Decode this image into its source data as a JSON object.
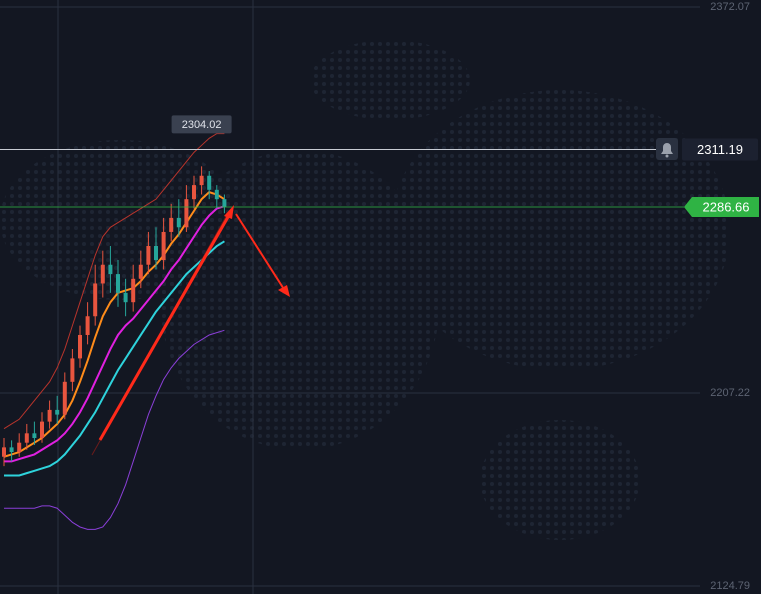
{
  "chart_data": {
    "type": "candlestick",
    "ylim": [
      2121.38,
      2375.06
    ],
    "yticks": [
      2372.07,
      2207.22,
      2124.79
    ],
    "categories": [
      null,
      null,
      null,
      null,
      null,
      null,
      null,
      null,
      null,
      null,
      null,
      null,
      null,
      null,
      null,
      null,
      null,
      null,
      null,
      null,
      null,
      null,
      null,
      null,
      null,
      null,
      null,
      null,
      null,
      null
    ],
    "open": [
      2180,
      2184,
      2182,
      2186,
      2190,
      2188,
      2195,
      2200,
      2198,
      2212,
      2222,
      2232,
      2240,
      2254,
      2262,
      2258,
      2250,
      2246,
      2256,
      2262,
      2270,
      2264,
      2276,
      2282,
      2278,
      2290,
      2296,
      2300,
      2294,
      2290
    ],
    "close": [
      2184,
      2182,
      2186,
      2190,
      2188,
      2195,
      2200,
      2198,
      2212,
      2222,
      2232,
      2240,
      2254,
      2262,
      2258,
      2250,
      2246,
      2256,
      2262,
      2270,
      2264,
      2276,
      2282,
      2278,
      2290,
      2296,
      2300,
      2294,
      2290,
      2286.66
    ],
    "high": [
      2188,
      2187,
      2190,
      2194,
      2195,
      2199,
      2204,
      2206,
      2216,
      2226,
      2236,
      2246,
      2262,
      2268,
      2270,
      2264,
      2256,
      2262,
      2268,
      2276,
      2278,
      2282,
      2288,
      2290,
      2296,
      2300,
      2304.02,
      2302,
      2296,
      2292
    ],
    "low": [
      2176,
      2178,
      2180,
      2183,
      2185,
      2186,
      2192,
      2194,
      2196,
      2208,
      2218,
      2228,
      2236,
      2248,
      2250,
      2244,
      2240,
      2242,
      2252,
      2258,
      2260,
      2260,
      2272,
      2274,
      2276,
      2286,
      2292,
      2290,
      2286,
      2284
    ],
    "up_color": "#e8553f",
    "down_color": "#26a69a",
    "series": [
      {
        "color": "#b8342c",
        "values": [
          2192,
          2194,
          2196,
          2200,
          2204,
          2208,
          2212,
          2218,
          2226,
          2236,
          2246,
          2256,
          2266,
          2274,
          2278,
          2280,
          2282,
          2284,
          2286,
          2288,
          2290,
          2294,
          2298,
          2302,
          2306,
          2310,
          2313,
          2316,
          2318,
          2318
        ]
      },
      {
        "color": "#ff8c1a",
        "values": [
          2180,
          2181,
          2182,
          2184,
          2186,
          2188,
          2191,
          2194,
          2198,
          2204,
          2212,
          2221,
          2231,
          2240,
          2246,
          2250,
          2251,
          2252,
          2255,
          2259,
          2262,
          2266,
          2271,
          2275,
          2280,
          2285,
          2290,
          2293,
          2292,
          2290
        ]
      },
      {
        "color": "#e020e0",
        "values": [
          2178,
          2178,
          2179,
          2180,
          2181,
          2183,
          2185,
          2187,
          2190,
          2194,
          2199,
          2205,
          2212,
          2219,
          2226,
          2232,
          2236,
          2239,
          2243,
          2247,
          2251,
          2255,
          2260,
          2264,
          2269,
          2274,
          2279,
          2283,
          2286,
          2287
        ]
      },
      {
        "color": "#2ed3dc",
        "values": [
          2172,
          2172,
          2172,
          2173,
          2174,
          2175,
          2176,
          2178,
          2181,
          2185,
          2189,
          2194,
          2199,
          2205,
          2211,
          2217,
          2222,
          2227,
          2232,
          2237,
          2242,
          2246,
          2250,
          2254,
          2258,
          2261,
          2264,
          2267,
          2270,
          2272
        ]
      },
      {
        "color": "#8a3fd8",
        "values": [
          2158,
          2158,
          2158,
          2158,
          2158,
          2159,
          2159,
          2158,
          2155,
          2152,
          2150,
          2149,
          2149,
          2150,
          2154,
          2160,
          2168,
          2178,
          2188,
          2198,
          2206,
          2213,
          2218,
          2222,
          2225,
          2228,
          2230,
          2232,
          2233,
          2234
        ]
      }
    ],
    "high_label": 2304.02,
    "alert_price": 2311.19,
    "last_price": 2286.66,
    "last_price_color": "#2fb344",
    "grid": true
  }
}
